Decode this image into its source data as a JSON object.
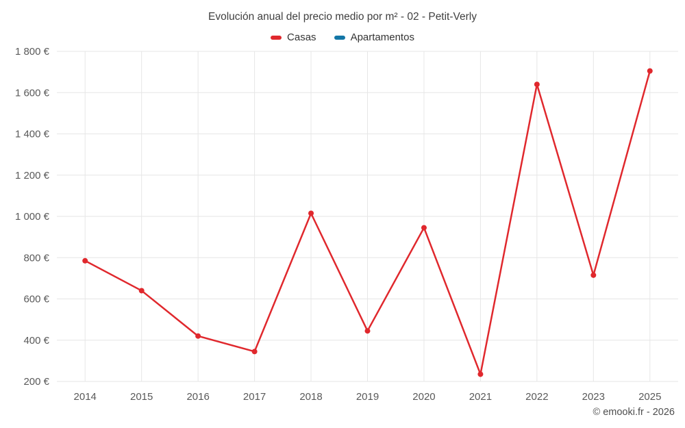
{
  "title": "Evolución anual del precio medio por m² - 02 - Petit-Verly",
  "legend": [
    {
      "label": "Casas",
      "color": "#e0282d"
    },
    {
      "label": "Apartamentos",
      "color": "#1376a6"
    }
  ],
  "footer": "© emooki.fr - 2026",
  "chart_data": {
    "type": "line",
    "title": "Evolución anual del precio medio por m² - 02 - Petit-Verly",
    "categories": [
      "2014",
      "2015",
      "2016",
      "2017",
      "2018",
      "2019",
      "2020",
      "2021",
      "2022",
      "2023",
      "2025"
    ],
    "series": [
      {
        "name": "Casas",
        "color": "#e0282d",
        "values": [
          785,
          640,
          420,
          345,
          1015,
          445,
          945,
          235,
          1640,
          715,
          1705
        ]
      },
      {
        "name": "Apartamentos",
        "color": "#1376a6",
        "values": []
      }
    ],
    "xlabel": "",
    "ylabel": "",
    "ylim": [
      200,
      1800
    ],
    "ytick_step": 200,
    "ytick_suffix": " €",
    "grid": true,
    "legend_position": "top"
  }
}
